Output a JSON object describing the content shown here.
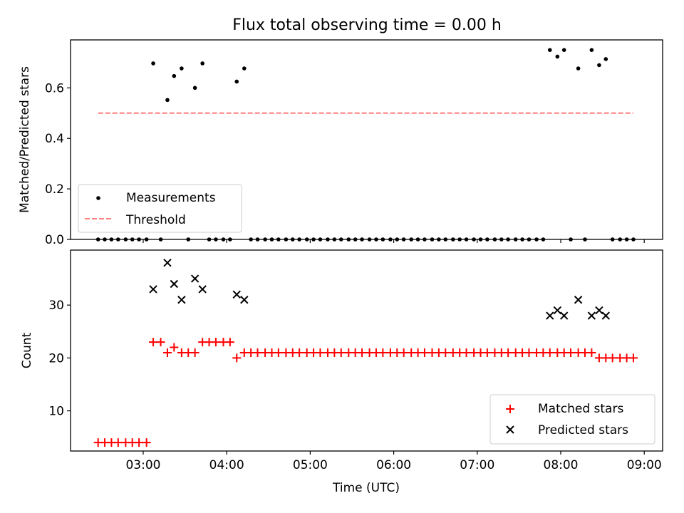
{
  "figure": {
    "title": "Flux total observing time = 0.00 h",
    "xlabel": "Time (UTC)",
    "xticks": [
      "03:00",
      "04:00",
      "05:00",
      "06:00",
      "07:00",
      "08:00",
      "09:00"
    ],
    "xlim_hours": [
      2.13,
      9.22
    ]
  },
  "chart_data": [
    {
      "type": "scatter",
      "panel": "top",
      "ylabel": "Matched/Predicted stars",
      "ylim": [
        0,
        0.79
      ],
      "yticks": [
        "0.0",
        "0.2",
        "0.4",
        "0.6"
      ],
      "legend_position": "lower-left",
      "series": [
        {
          "name": "Measurements",
          "marker": "dot",
          "color": "#000000",
          "x_hours": [
            2.46,
            2.54,
            2.62,
            2.7,
            2.79,
            2.87,
            2.95,
            3.04,
            3.12,
            3.21,
            3.29,
            3.37,
            3.46,
            3.54,
            3.62,
            3.71,
            3.79,
            3.87,
            3.96,
            4.04,
            4.12,
            4.21,
            4.29,
            4.37,
            4.46,
            4.54,
            4.62,
            4.71,
            4.79,
            4.87,
            4.96,
            5.04,
            5.12,
            5.21,
            5.29,
            5.37,
            5.46,
            5.54,
            5.62,
            5.71,
            5.79,
            5.87,
            5.96,
            6.04,
            6.12,
            6.21,
            6.29,
            6.37,
            6.46,
            6.54,
            6.62,
            6.71,
            6.79,
            6.87,
            6.96,
            7.04,
            7.12,
            7.21,
            7.29,
            7.37,
            7.46,
            7.54,
            7.62,
            7.71,
            7.79,
            7.87,
            7.96,
            8.04,
            8.12,
            8.21,
            8.29,
            8.37,
            8.46,
            8.54,
            8.62,
            8.71,
            8.79,
            8.87
          ],
          "y": [
            0,
            0,
            0,
            0,
            0,
            0,
            0,
            0,
            0.697,
            0,
            0.552,
            0.647,
            0.677,
            0,
            0.6,
            0.697,
            0,
            0,
            0,
            0,
            0.625,
            0.677,
            0,
            0,
            0,
            0,
            0,
            0,
            0,
            0,
            0,
            0,
            0,
            0,
            0,
            0,
            0,
            0,
            0,
            0,
            0,
            0,
            0,
            0,
            0,
            0,
            0,
            0,
            0,
            0,
            0,
            0,
            0,
            0,
            0,
            0,
            0,
            0,
            0,
            0,
            0,
            0,
            0,
            0,
            0,
            0.75,
            0.724,
            0.75,
            0,
            0.677,
            0,
            0.75,
            0.69,
            0.714,
            0,
            0,
            0,
            0
          ]
        },
        {
          "name": "Threshold",
          "marker": "dashed-line",
          "color": "#ff7f7f",
          "x_hours": [
            2.46,
            8.87
          ],
          "y": [
            0.5,
            0.5
          ]
        }
      ]
    },
    {
      "type": "scatter",
      "panel": "bottom",
      "ylabel": "Count",
      "ylim": [
        2.4,
        40.4
      ],
      "yticks": [
        "10",
        "20",
        "30"
      ],
      "legend_position": "lower-right",
      "series": [
        {
          "name": "Matched stars",
          "marker": "plus",
          "color": "#ff0000",
          "x_hours": [
            2.46,
            2.54,
            2.62,
            2.7,
            2.79,
            2.87,
            2.95,
            3.04,
            3.12,
            3.21,
            3.29,
            3.37,
            3.46,
            3.54,
            3.62,
            3.71,
            3.79,
            3.87,
            3.96,
            4.04,
            4.12,
            4.21,
            4.29,
            4.37,
            4.46,
            4.54,
            4.62,
            4.71,
            4.79,
            4.87,
            4.96,
            5.04,
            5.12,
            5.21,
            5.29,
            5.37,
            5.46,
            5.54,
            5.62,
            5.71,
            5.79,
            5.87,
            5.96,
            6.04,
            6.12,
            6.21,
            6.29,
            6.37,
            6.46,
            6.54,
            6.62,
            6.71,
            6.79,
            6.87,
            6.96,
            7.04,
            7.12,
            7.21,
            7.29,
            7.37,
            7.46,
            7.54,
            7.62,
            7.71,
            7.79,
            7.87,
            7.96,
            8.04,
            8.12,
            8.21,
            8.29,
            8.37,
            8.46,
            8.54,
            8.62,
            8.71,
            8.79,
            8.87
          ],
          "y": [
            4,
            4,
            4,
            4,
            4,
            4,
            4,
            4,
            23,
            23,
            21,
            22,
            21,
            21,
            21,
            23,
            23,
            23,
            23,
            23,
            20,
            21,
            21,
            21,
            21,
            21,
            21,
            21,
            21,
            21,
            21,
            21,
            21,
            21,
            21,
            21,
            21,
            21,
            21,
            21,
            21,
            21,
            21,
            21,
            21,
            21,
            21,
            21,
            21,
            21,
            21,
            21,
            21,
            21,
            21,
            21,
            21,
            21,
            21,
            21,
            21,
            21,
            21,
            21,
            21,
            21,
            21,
            21,
            21,
            21,
            21,
            21,
            20,
            20,
            20,
            20,
            20,
            20
          ]
        },
        {
          "name": "Predicted stars",
          "marker": "x",
          "color": "#000000",
          "x_hours": [
            3.12,
            3.29,
            3.37,
            3.46,
            3.62,
            3.71,
            4.12,
            4.21,
            7.87,
            7.96,
            8.04,
            8.21,
            8.37,
            8.46,
            8.54
          ],
          "y": [
            33,
            38,
            34,
            31,
            35,
            33,
            32,
            31,
            28,
            29,
            28,
            31,
            28,
            29,
            28
          ]
        }
      ]
    }
  ]
}
